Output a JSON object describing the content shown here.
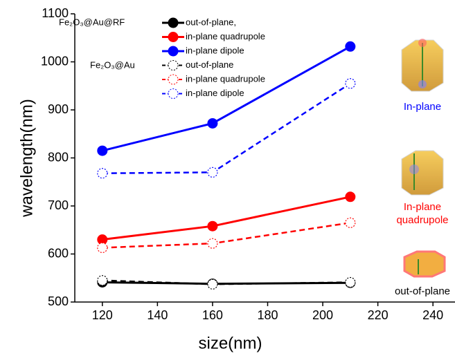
{
  "chart_data": {
    "type": "line",
    "x_label": "size(nm)",
    "y_label": "wavelength(nm)",
    "x": [
      120,
      160,
      210
    ],
    "xlim": [
      110,
      248
    ],
    "xticks": [
      120,
      140,
      160,
      180,
      200,
      220,
      240
    ],
    "ylim": [
      500,
      1100
    ],
    "yticks": [
      500,
      600,
      700,
      800,
      900,
      1000,
      1100
    ],
    "groups": [
      {
        "name": "Fe₂O₃@Au@RF",
        "line_style": "solid",
        "marker": "filled",
        "series": [
          {
            "name": "out-of-plane,",
            "color": "#000000",
            "values": [
              541,
              538,
              540
            ]
          },
          {
            "name": "in-plane quadrupole",
            "color": "#ff0000",
            "values": [
              630,
              658,
              719
            ]
          },
          {
            "name": "in-plane dipole",
            "color": "#0000ff",
            "values": [
              815,
              872,
              1032
            ]
          }
        ]
      },
      {
        "name": "Fe₂O₃@Au",
        "line_style": "dashed",
        "marker": "open",
        "series": [
          {
            "name": "out-of-plane",
            "color": "#000000",
            "values": [
              545,
              537,
              541
            ]
          },
          {
            "name": "in-plane quadrupole",
            "color": "#ff0000",
            "values": [
              613,
              622,
              665
            ]
          },
          {
            "name": "in-plane dipole",
            "color": "#0000ff",
            "values": [
              768,
              770,
              955
            ]
          }
        ]
      }
    ],
    "annotations": [
      {
        "text": "In-plane",
        "color": "#0000ff"
      },
      {
        "text": "In-plane quadrupole",
        "color": "#ff0000"
      },
      {
        "text": "out-of-plane",
        "color": "#000000"
      }
    ]
  }
}
